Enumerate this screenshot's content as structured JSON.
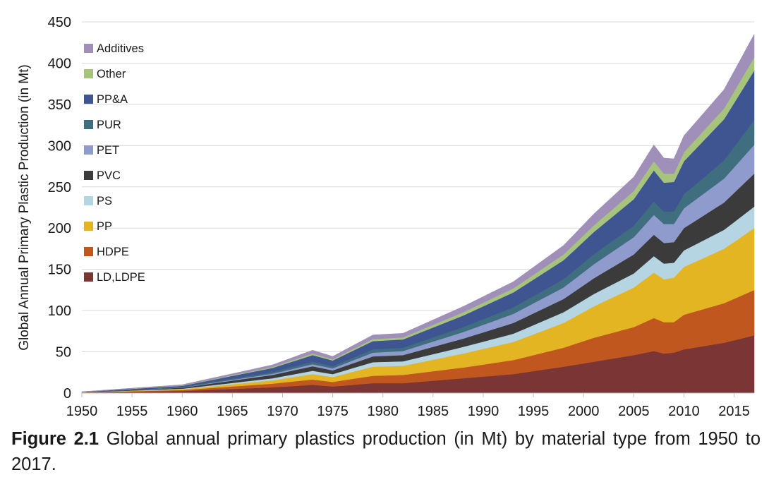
{
  "chart_data": {
    "type": "area",
    "stacked": true,
    "ylabel": "Global Annual Primary Plastic Production (in Mt)",
    "xlabel": "",
    "xlim": [
      1950,
      2017
    ],
    "ylim": [
      0,
      450
    ],
    "xticks": [
      1950,
      1955,
      1960,
      1965,
      1970,
      1975,
      1980,
      1985,
      1990,
      1995,
      2000,
      2005,
      2010,
      2015
    ],
    "yticks": [
      0,
      50,
      100,
      150,
      200,
      250,
      300,
      350,
      400,
      450
    ],
    "grid": "horizontal",
    "legend_position": "top-left",
    "anchor_years": [
      1950,
      1960,
      1969,
      1973,
      1975,
      1979,
      1982,
      1988,
      1993,
      1998,
      2001,
      2005,
      2007,
      2008,
      2009,
      2010,
      2014,
      2017
    ],
    "series": [
      {
        "name": "LD,LDPE",
        "color": "#7b3535",
        "values": [
          0.5,
          2.5,
          7,
          10,
          8,
          12,
          12,
          18,
          23,
          32,
          38,
          46,
          51,
          48,
          49,
          53,
          61,
          70
        ]
      },
      {
        "name": "HDPE",
        "color": "#c0571e",
        "values": [
          0.2,
          1.2,
          4.5,
          6.5,
          5.5,
          9,
          10,
          13,
          17,
          23,
          29,
          34,
          40,
          38,
          37,
          42,
          48,
          55
        ]
      },
      {
        "name": "PP",
        "color": "#e3b523",
        "values": [
          0.1,
          0.9,
          4,
          6.5,
          6,
          11,
          11,
          17,
          22,
          30,
          38,
          48,
          55,
          52,
          54,
          58,
          66,
          75
        ]
      },
      {
        "name": "PS",
        "color": "#b5d5e2",
        "values": [
          0.1,
          0.7,
          2.5,
          4,
          3.5,
          5.5,
          5.5,
          8,
          10,
          13,
          15,
          17,
          20,
          19,
          18,
          20,
          23,
          26
        ]
      },
      {
        "name": "PVC",
        "color": "#3b3b3b",
        "values": [
          0.3,
          1.3,
          4,
          5.5,
          4.5,
          7,
          7.5,
          10,
          13,
          16,
          19,
          23,
          26,
          25,
          25,
          27,
          33,
          40
        ]
      },
      {
        "name": "PET",
        "color": "#8f9bcc",
        "values": [
          0.05,
          0.3,
          1.5,
          2.5,
          2.5,
          4.5,
          5,
          8,
          11,
          14,
          17,
          21,
          24,
          23,
          22,
          24,
          29,
          35
        ]
      },
      {
        "name": "PUR",
        "color": "#3f6e7f",
        "values": [
          0.05,
          0.4,
          2,
          3,
          2.5,
          4,
          4,
          6,
          8,
          10,
          12,
          14,
          16,
          15,
          15,
          17,
          22,
          30
        ]
      },
      {
        "name": "PP&A",
        "color": "#3f5591",
        "values": [
          0.2,
          1.5,
          5,
          8,
          7,
          10,
          10,
          14,
          18,
          23,
          27,
          32,
          38,
          35,
          36,
          40,
          50,
          60
        ]
      },
      {
        "name": "Other",
        "color": "#a7c47c",
        "values": [
          0.05,
          0.4,
          1.2,
          2,
          1.5,
          2.5,
          2.5,
          4,
          5,
          7,
          8,
          10,
          11,
          11,
          10,
          11,
          13,
          16
        ]
      },
      {
        "name": "Additives",
        "color": "#9f8fb9",
        "values": [
          0.2,
          1,
          2.5,
          4,
          3.5,
          5,
          5,
          7,
          8,
          11,
          14,
          17,
          20,
          19,
          18,
          20,
          23,
          28
        ]
      }
    ]
  },
  "caption": {
    "label": "Figure 2.1",
    "text": "Global annual primary plastics production (in Mt) by material type from 1950 to 2017."
  }
}
